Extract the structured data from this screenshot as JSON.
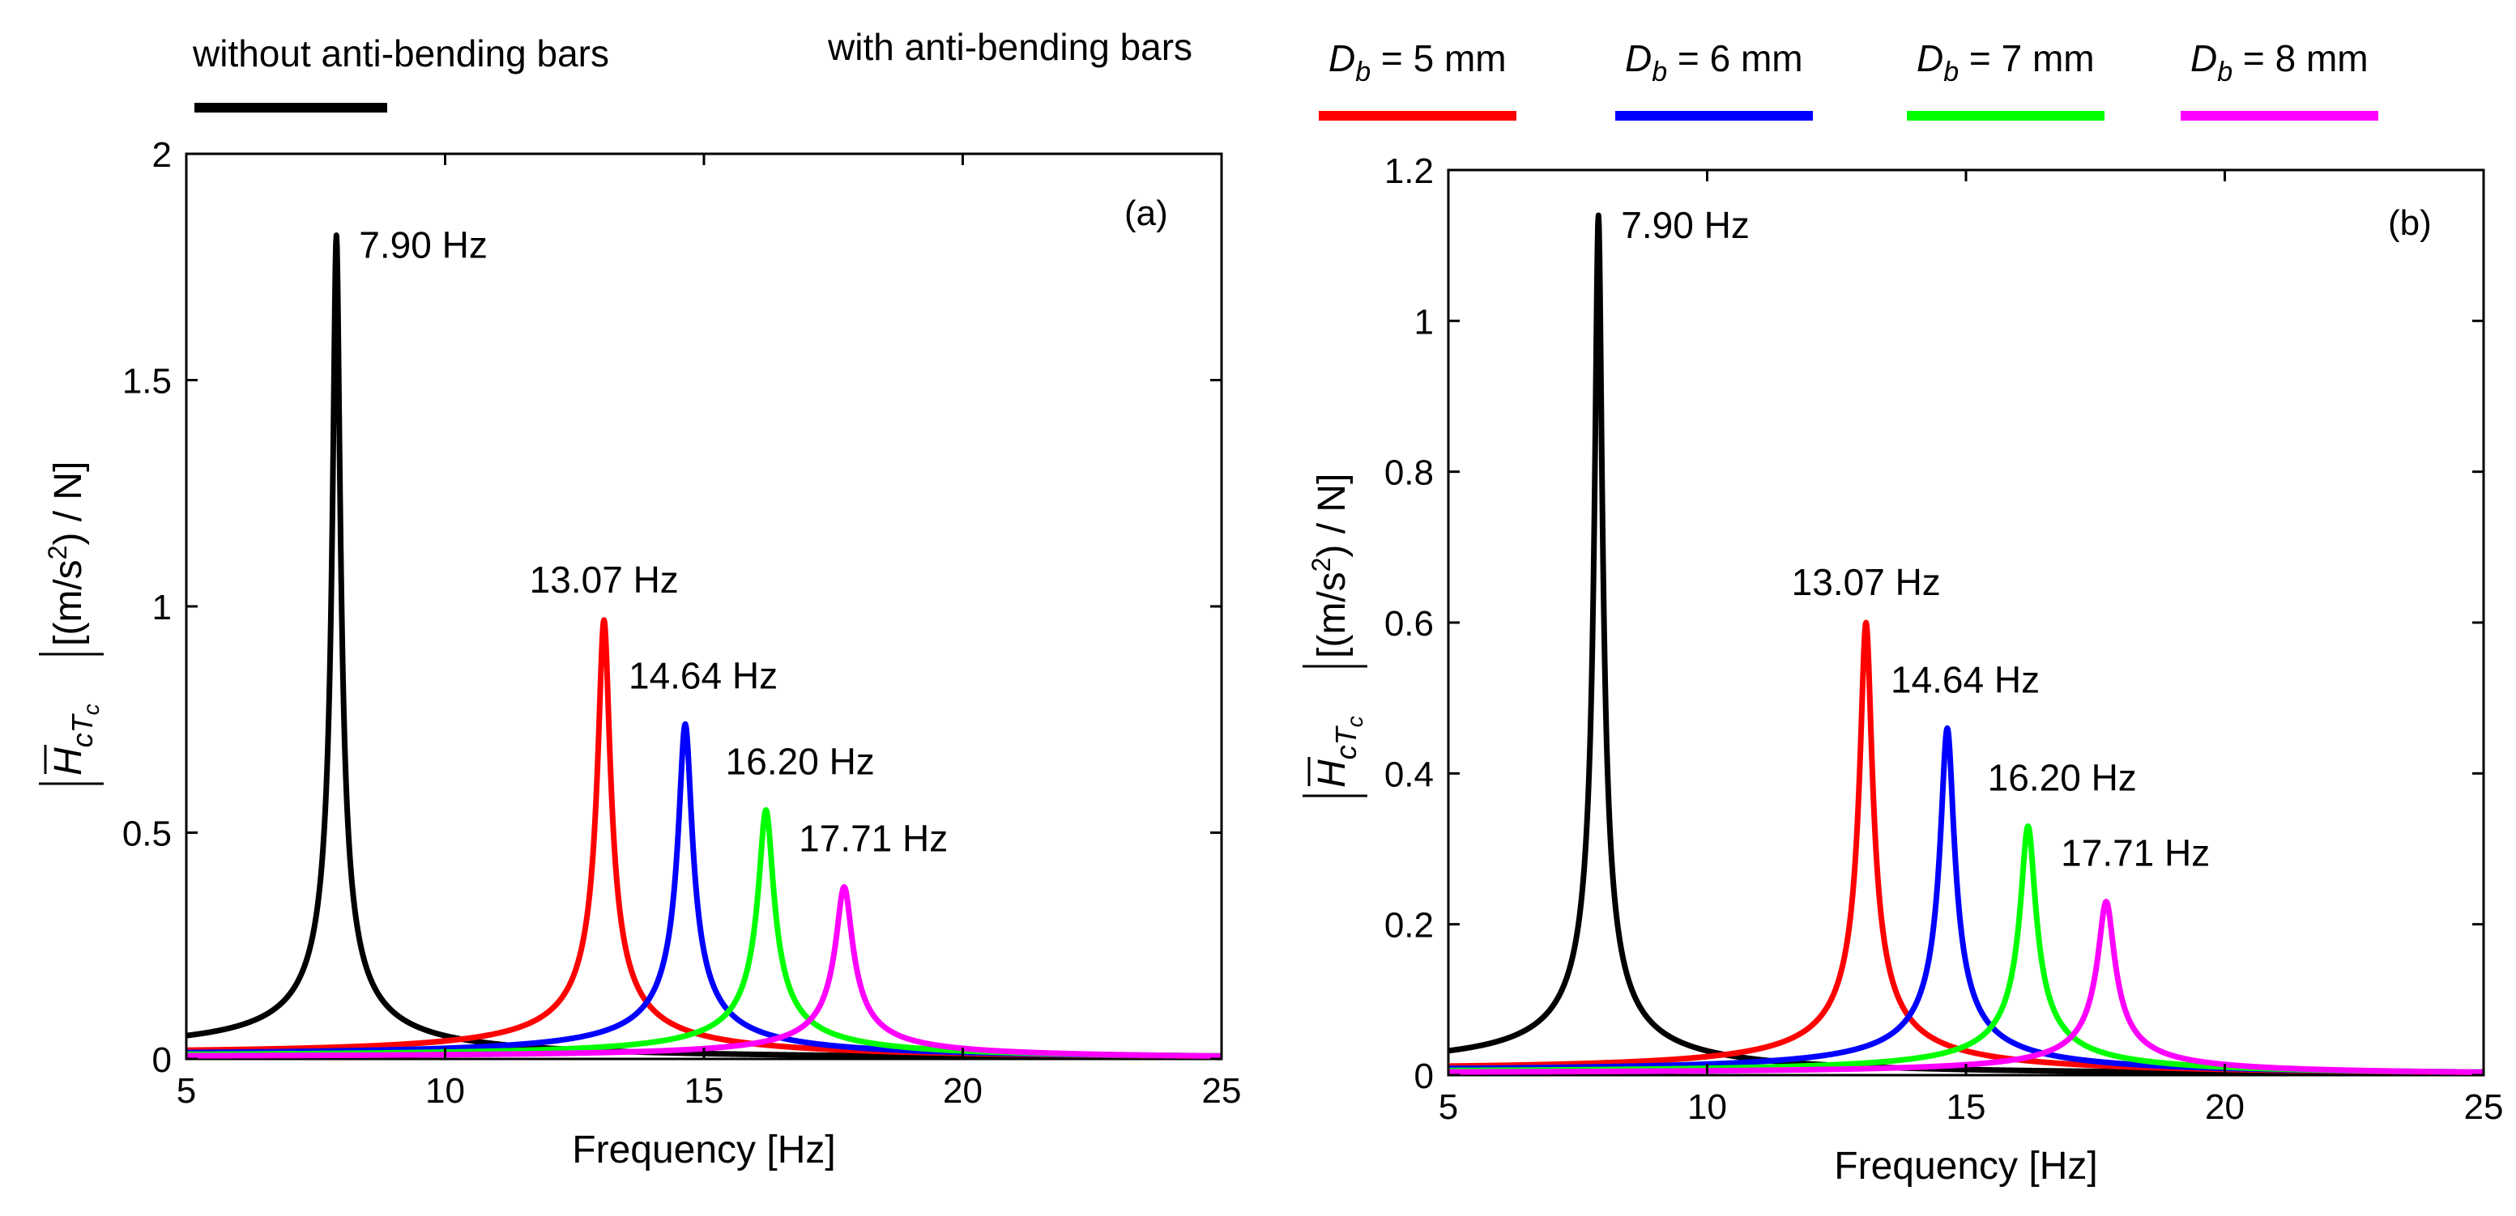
{
  "legend": {
    "without_label": "without anti-bending bars",
    "with_label": "with anti-bending bars",
    "db_symbol": "D",
    "db_subscript": "b",
    "entries": [
      {
        "value_text": " = 5 mm",
        "color": "#ff0000"
      },
      {
        "value_text": " = 6 mm",
        "color": "#0000ff"
      },
      {
        "value_text": " = 7 mm",
        "color": "#00ff00"
      },
      {
        "value_text": " = 8 mm",
        "color": "#ff00ff"
      }
    ],
    "without_color": "#000000"
  },
  "y_label": {
    "H": "H",
    "sub": "cT",
    "subsub": "c",
    "units_pre": "[(m/s",
    "units_sup": "2",
    "units_post": ") / N]"
  },
  "chart_data": [
    {
      "type": "line",
      "panel_tag": "(a)",
      "xlabel": "Frequency [Hz]",
      "xlim": [
        5,
        25
      ],
      "ylim": [
        0,
        2
      ],
      "xticks": [
        5,
        10,
        15,
        20,
        25
      ],
      "yticks": [
        0,
        0.5,
        1,
        1.5,
        2
      ],
      "ytick_labels": [
        "0",
        "0.5",
        "1",
        "1.5",
        "2"
      ],
      "grid": false,
      "series": [
        {
          "color": "#000000",
          "peak_freq": 7.9,
          "peak_value": 1.82,
          "peak_label": "7.90 Hz"
        },
        {
          "color": "#ff0000",
          "peak_freq": 13.07,
          "peak_value": 0.97,
          "peak_label": "13.07 Hz"
        },
        {
          "color": "#0000ff",
          "peak_freq": 14.64,
          "peak_value": 0.74,
          "peak_label": "14.64 Hz"
        },
        {
          "color": "#00ff00",
          "peak_freq": 16.2,
          "peak_value": 0.55,
          "peak_label": "16.20 Hz"
        },
        {
          "color": "#ff00ff",
          "peak_freq": 17.71,
          "peak_value": 0.38,
          "peak_label": "17.71 Hz"
        }
      ]
    },
    {
      "type": "line",
      "panel_tag": "(b)",
      "xlabel": "Frequency [Hz]",
      "xlim": [
        5,
        25
      ],
      "ylim": [
        0,
        1.2
      ],
      "xticks": [
        5,
        10,
        15,
        20,
        25
      ],
      "yticks": [
        0,
        0.2,
        0.4,
        0.6,
        0.8,
        1,
        1.2
      ],
      "ytick_labels": [
        "0",
        "0.2",
        "0.4",
        "0.6",
        "0.8",
        "1",
        "1.2"
      ],
      "grid": false,
      "series": [
        {
          "color": "#000000",
          "peak_freq": 7.9,
          "peak_value": 1.14,
          "peak_label": "7.90 Hz"
        },
        {
          "color": "#ff0000",
          "peak_freq": 13.07,
          "peak_value": 0.6,
          "peak_label": "13.07 Hz"
        },
        {
          "color": "#0000ff",
          "peak_freq": 14.64,
          "peak_value": 0.46,
          "peak_label": "14.64 Hz"
        },
        {
          "color": "#00ff00",
          "peak_freq": 16.2,
          "peak_value": 0.33,
          "peak_label": "16.20 Hz"
        },
        {
          "color": "#ff00ff",
          "peak_freq": 17.71,
          "peak_value": 0.23,
          "peak_label": "17.71 Hz"
        }
      ]
    }
  ]
}
